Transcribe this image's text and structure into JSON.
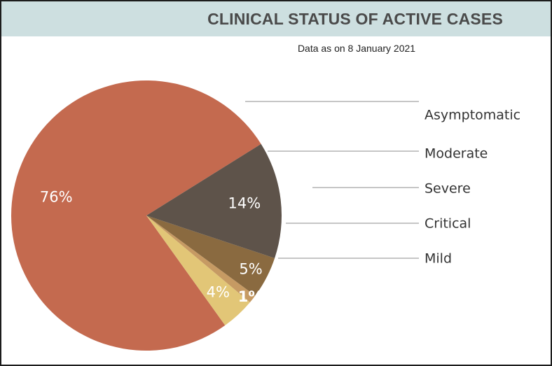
{
  "header": {
    "title": "CLINICAL STATUS OF ACTIVE CASES",
    "subtitle": "Data as on 8 January 2021"
  },
  "chart_data": {
    "type": "pie",
    "title": "CLINICAL STATUS OF ACTIVE CASES",
    "subtitle": "Data as on 8 January 2021",
    "categories": [
      "Asymptomatic",
      "Moderate",
      "Severe",
      "Critical",
      "Mild"
    ],
    "values": [
      76,
      4,
      1,
      5,
      14
    ],
    "labels": [
      "76%",
      "4%",
      "1%",
      "5%",
      "14%"
    ],
    "colors": [
      "#c46a4f",
      "#e2c677",
      "#c69a63",
      "#8a6a40",
      "#5e534a"
    ],
    "label_colors": [
      "#ffffff",
      "#ffffff",
      "#c69a63",
      "#ffffff",
      "#ffffff"
    ],
    "legend_position": "right"
  }
}
